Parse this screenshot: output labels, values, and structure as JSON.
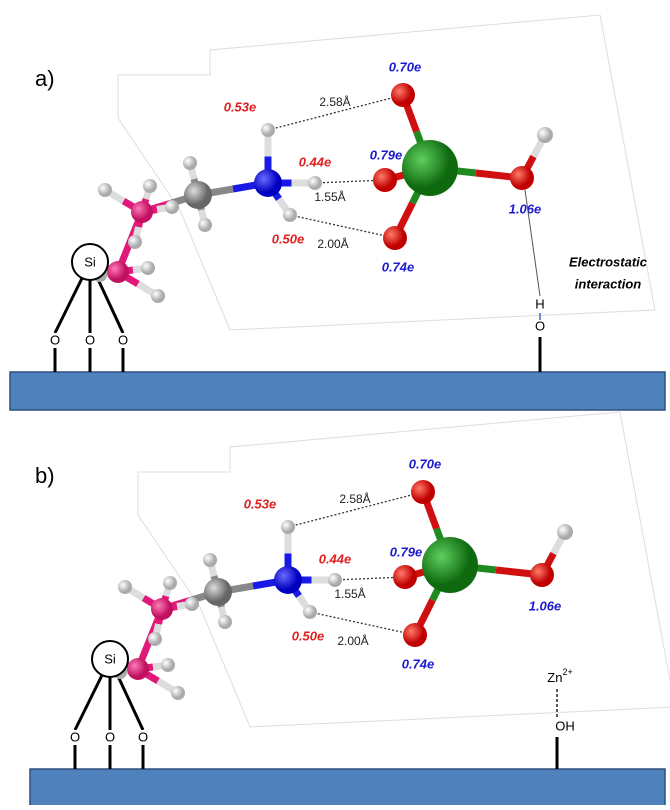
{
  "panels": [
    {
      "label": "a)",
      "charge_labels": [
        "0.70e",
        "0.53e",
        "0.44e",
        "0.79e",
        "1.06e",
        "0.50e",
        "0.74e"
      ],
      "distances": [
        "2.58Å",
        "1.55Å",
        "2.00Å"
      ],
      "si": "Si",
      "surface_oxygens": [
        "O",
        "O",
        "O"
      ],
      "annotation": [
        "Electrostatic",
        "interaction"
      ],
      "surface_atom": "H",
      "surface_group": "O"
    },
    {
      "label": "b)",
      "charge_labels": [
        "0.70e",
        "0.53e",
        "0.44e",
        "0.79e",
        "1.06e",
        "0.50e",
        "0.74e"
      ],
      "distances": [
        "2.58Å",
        "1.55Å",
        "2.00Å"
      ],
      "si": "Si",
      "surface_oxygens": [
        "O",
        "O",
        "O"
      ],
      "surface_ion": {
        "base": "Zn",
        "superscript": "2+"
      },
      "surface_group": "OH"
    }
  ]
}
